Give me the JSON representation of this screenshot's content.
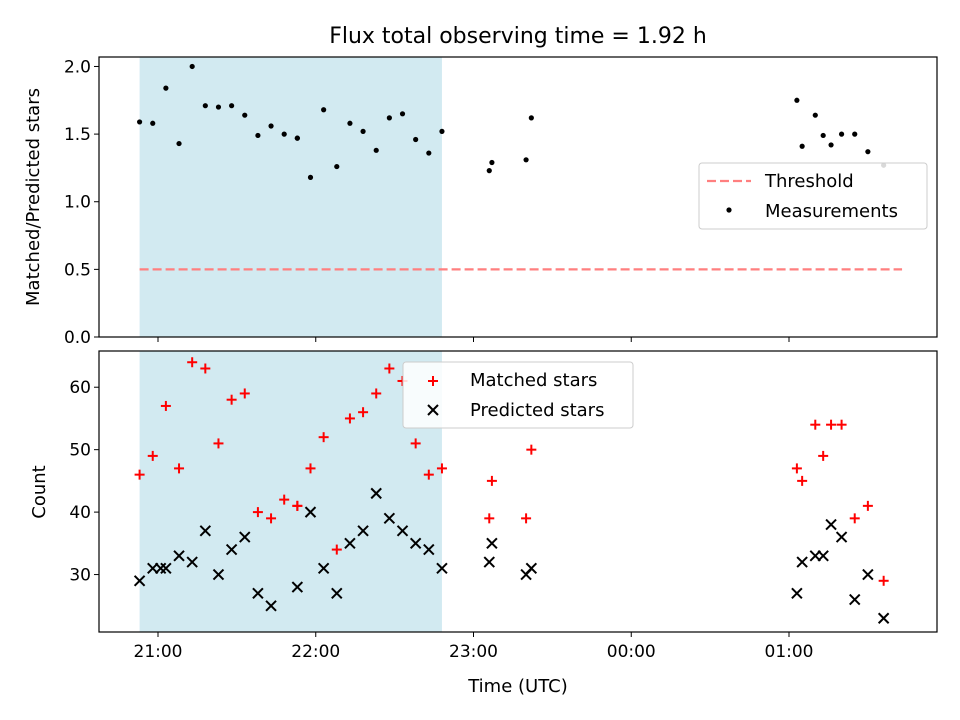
{
  "title": "Flux total observing time = 1.92 h",
  "xlabel": "Time (UTC)",
  "x_ticks": [
    "21:00",
    "22:00",
    "23:00",
    "00:00",
    "01:00"
  ],
  "colors": {
    "shade": "#add8e6",
    "threshold": "#ff7f7f",
    "matched": "#ff0000",
    "predicted": "#000000",
    "measurement": "#000000"
  },
  "chart_data": [
    {
      "type": "scatter",
      "panel": "top",
      "ylabel": "Matched/Predicted stars",
      "ylim": [
        0,
        2.07
      ],
      "y_ticks": [
        "0.0",
        "0.5",
        "1.0",
        "1.5",
        "2.0"
      ],
      "y_tick_values": [
        0,
        0.5,
        1.0,
        1.5,
        2.0
      ],
      "shaded_span": [
        "20:53",
        "22:48"
      ],
      "legend": {
        "placement": "center-right",
        "entries": [
          "Threshold",
          "Measurements"
        ]
      },
      "threshold": {
        "name": "Threshold",
        "y": 0.5,
        "x_range": [
          "20:53",
          "25:43"
        ]
      },
      "series": [
        {
          "name": "Measurements",
          "x": [
            "20:53",
            "20:58",
            "21:03",
            "21:08",
            "21:13",
            "21:18",
            "21:23",
            "21:28",
            "21:33",
            "21:38",
            "21:43",
            "21:48",
            "21:53",
            "21:53",
            "21:58",
            "22:03",
            "22:08",
            "22:13",
            "22:18",
            "22:23",
            "22:28",
            "22:33",
            "22:38",
            "22:43",
            "22:48",
            "23:06",
            "23:07",
            "23:20",
            "23:22",
            "25:03",
            "25:05",
            "25:10",
            "25:13",
            "25:16",
            "25:20",
            "25:25",
            "25:30",
            "25:36"
          ],
          "y": [
            1.59,
            1.58,
            1.84,
            1.43,
            2.0,
            1.71,
            1.7,
            1.71,
            1.64,
            1.49,
            1.56,
            1.5,
            1.47,
            1.47,
            1.18,
            1.68,
            1.26,
            1.58,
            1.52,
            1.38,
            1.62,
            1.65,
            1.46,
            1.36,
            1.52,
            1.23,
            1.29,
            1.31,
            1.62,
            1.75,
            1.41,
            1.64,
            1.49,
            1.42,
            1.5,
            1.5,
            1.37,
            1.27
          ]
        }
      ]
    },
    {
      "type": "scatter",
      "panel": "bottom",
      "ylabel": "Count",
      "ylim": [
        20.8,
        65.8
      ],
      "y_ticks": [
        "30",
        "40",
        "50",
        "60"
      ],
      "y_tick_values": [
        30,
        40,
        50,
        60
      ],
      "shaded_span": [
        "20:53",
        "22:48"
      ],
      "legend": {
        "placement": "upper-center",
        "entries": [
          "Matched stars",
          "Predicted stars"
        ]
      },
      "series": [
        {
          "name": "Matched stars",
          "marker": "+",
          "x": [
            "20:53",
            "20:58",
            "21:03",
            "21:08",
            "21:13",
            "21:18",
            "21:23",
            "21:28",
            "21:33",
            "21:38",
            "21:43",
            "21:48",
            "21:53",
            "21:53",
            "21:58",
            "22:03",
            "22:08",
            "22:13",
            "22:18",
            "22:23",
            "22:28",
            "22:33",
            "22:38",
            "22:43",
            "22:48",
            "23:06",
            "23:07",
            "23:20",
            "23:22",
            "25:03",
            "25:05",
            "25:10",
            "25:13",
            "25:16",
            "25:20",
            "25:25",
            "25:30",
            "25:36"
          ],
          "y": [
            46,
            49,
            57,
            47,
            64,
            63,
            51,
            58,
            59,
            40,
            39,
            42,
            41,
            41,
            47,
            52,
            34,
            55,
            56,
            59,
            63,
            61,
            51,
            46,
            47,
            39,
            45,
            39,
            50,
            47,
            45,
            54,
            49,
            54,
            54,
            39,
            41,
            29
          ]
        },
        {
          "name": "Predicted stars",
          "marker": "x",
          "x": [
            "20:53",
            "20:58",
            "21:01",
            "21:03",
            "21:08",
            "21:13",
            "21:18",
            "21:23",
            "21:28",
            "21:33",
            "21:38",
            "21:43",
            "21:53",
            "21:58",
            "22:03",
            "22:08",
            "22:13",
            "22:18",
            "22:23",
            "22:28",
            "22:33",
            "22:38",
            "22:43",
            "22:48",
            "23:06",
            "23:07",
            "23:20",
            "23:22",
            "25:03",
            "25:05",
            "25:10",
            "25:13",
            "25:16",
            "25:20",
            "25:25",
            "25:30",
            "25:36"
          ],
          "y": [
            29,
            31,
            31,
            31,
            33,
            32,
            37,
            30,
            34,
            36,
            27,
            25,
            28,
            40,
            31,
            27,
            35,
            37,
            43,
            39,
            37,
            35,
            34,
            31,
            32,
            35,
            30,
            31,
            27,
            32,
            33,
            33,
            38,
            36,
            26,
            30,
            23
          ]
        }
      ]
    }
  ]
}
